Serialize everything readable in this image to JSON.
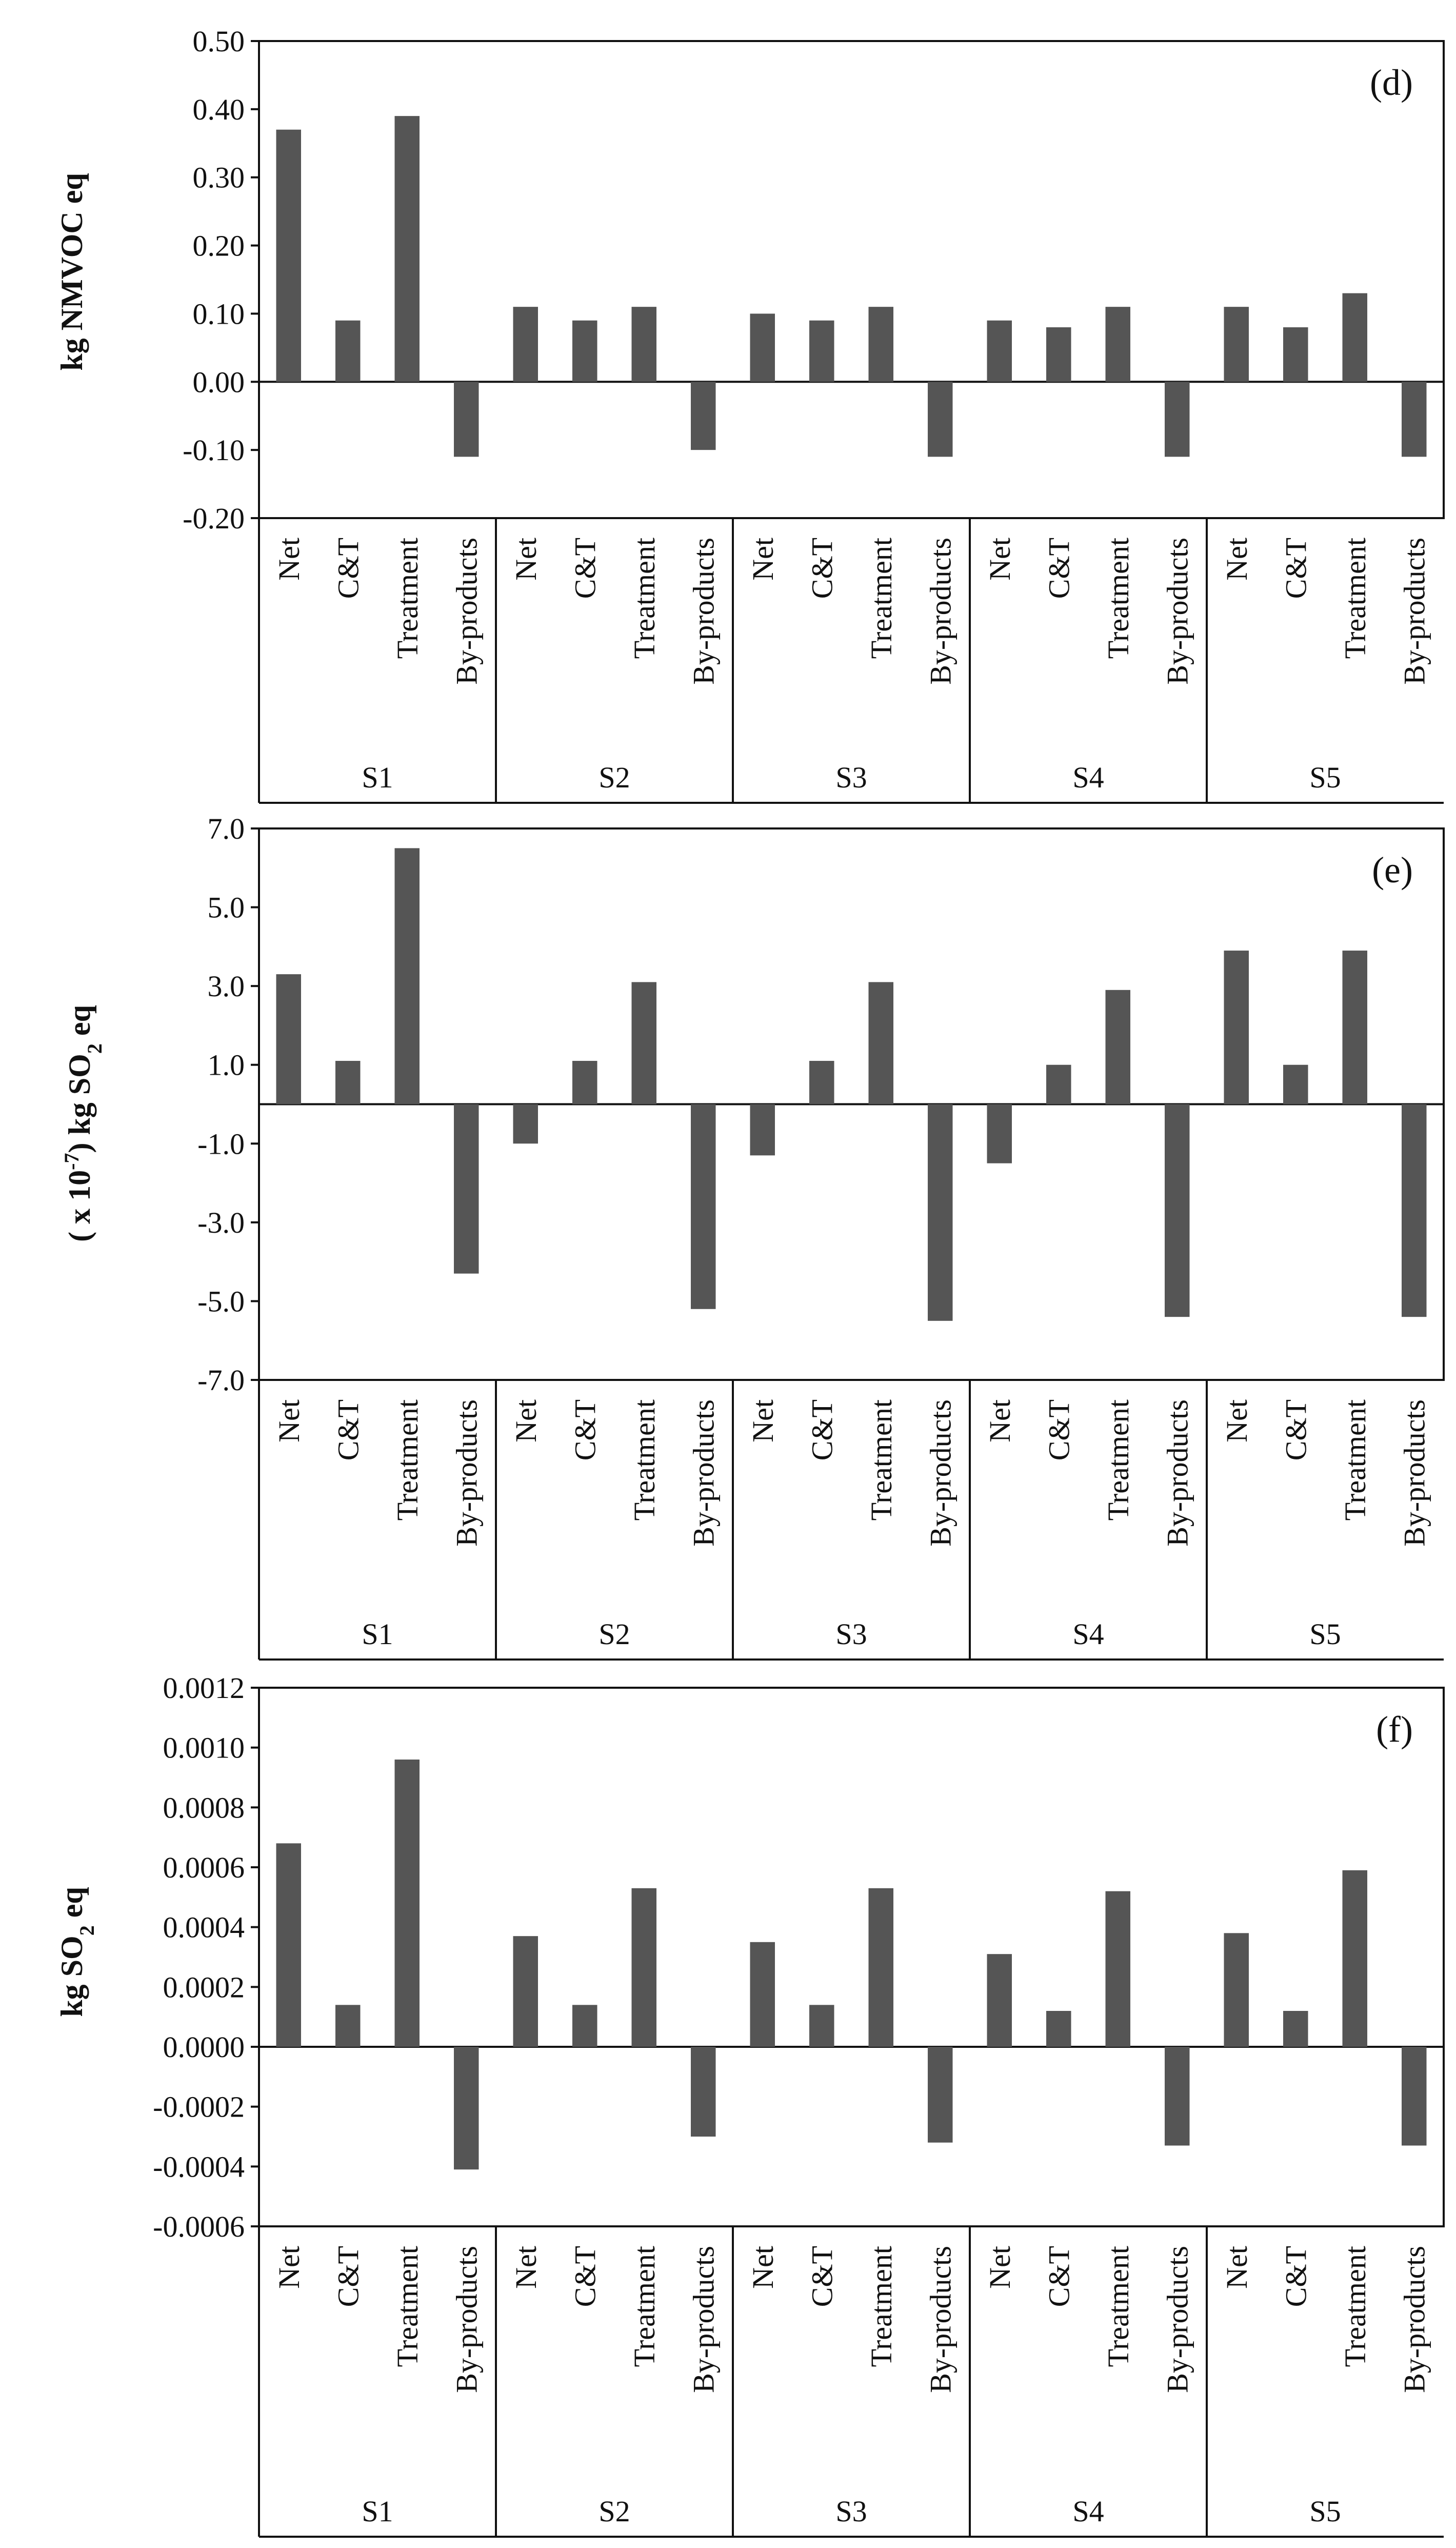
{
  "chart_data": [
    {
      "type": "bar",
      "panel_label": "(d)",
      "ylabel": "kg NMVOC eq",
      "ylim": [
        -0.2,
        0.5
      ],
      "y_ticks": [
        "0.50",
        "0.40",
        "0.30",
        "0.20",
        "0.10",
        "0.00",
        "-0.10",
        "-0.20"
      ],
      "groups": [
        "S1",
        "S2",
        "S3",
        "S4",
        "S5"
      ],
      "categories": [
        "Net",
        "C&T",
        "Treatment",
        "By-products"
      ],
      "values": [
        [
          0.37,
          0.09,
          0.39,
          -0.11
        ],
        [
          0.11,
          0.09,
          0.11,
          -0.1
        ],
        [
          0.1,
          0.09,
          0.11,
          -0.11
        ],
        [
          0.09,
          0.08,
          0.11,
          -0.11
        ],
        [
          0.11,
          0.08,
          0.13,
          -0.11
        ]
      ]
    },
    {
      "type": "bar",
      "panel_label": "(e)",
      "ylabel_parts": [
        "( x 10",
        "-7",
        ")  kg SO",
        "2",
        " eq"
      ],
      "ylim": [
        -7.0,
        7.0
      ],
      "y_ticks": [
        "7.0",
        "5.0",
        "3.0",
        "1.0",
        "-1.0",
        "-3.0",
        "-5.0",
        "-7.0"
      ],
      "groups": [
        "S1",
        "S2",
        "S3",
        "S4",
        "S5"
      ],
      "categories": [
        "Net",
        "C&T",
        "Treatment",
        "By-products"
      ],
      "values": [
        [
          3.3,
          1.1,
          6.5,
          -4.3
        ],
        [
          -1.0,
          1.1,
          3.1,
          -5.2
        ],
        [
          -1.3,
          1.1,
          3.1,
          -5.5
        ],
        [
          -1.5,
          1.0,
          2.9,
          -5.4
        ],
        [
          3.9,
          1.0,
          3.9,
          -5.4
        ]
      ]
    },
    {
      "type": "bar",
      "panel_label": "(f)",
      "ylabel_parts": [
        "kg SO",
        "2",
        " eq"
      ],
      "ylim": [
        -0.0006,
        0.0012
      ],
      "y_ticks": [
        "0.0012",
        "0.0010",
        "0.0008",
        "0.0006",
        "0.0004",
        "0.0002",
        "0.0000",
        "-0.0002",
        "-0.0004",
        "-0.0006"
      ],
      "groups": [
        "S1",
        "S2",
        "S3",
        "S4",
        "S5"
      ],
      "categories": [
        "Net",
        "C&T",
        "Treatment",
        "By-products"
      ],
      "values": [
        [
          0.00068,
          0.00014,
          0.00096,
          -0.00041
        ],
        [
          0.00037,
          0.00014,
          0.00053,
          -0.0003
        ],
        [
          0.00035,
          0.00014,
          0.00053,
          -0.00032
        ],
        [
          0.00031,
          0.00012,
          0.00052,
          -0.00033
        ],
        [
          0.00038,
          0.00012,
          0.00059,
          -0.00033
        ]
      ]
    }
  ]
}
